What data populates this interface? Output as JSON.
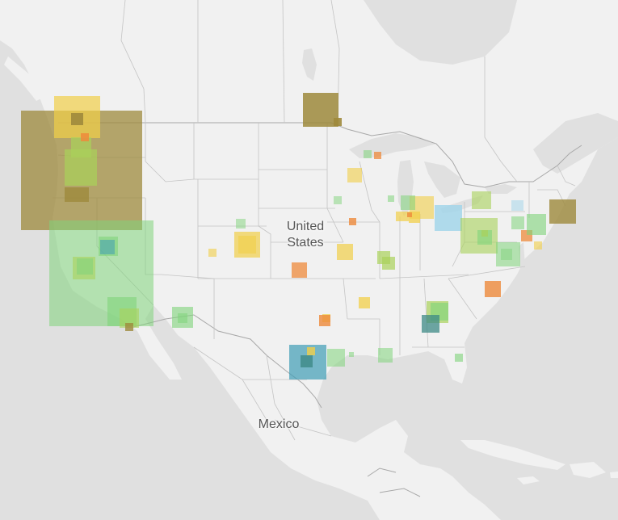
{
  "map": {
    "labels": {
      "usa_line1": "United",
      "usa_line2": "States",
      "mexico": "Mexico"
    },
    "palette": {
      "land": "#f1f1f1",
      "water": "#e0e0e0",
      "border": "#c4c4c4",
      "country_border": "#a8a8a8",
      "olive": "#9e8a3c",
      "green": "#7fd37a",
      "lime": "#a9d25a",
      "yellow": "#f1cf48",
      "orange": "#ee8a3b",
      "teal": "#3f9cb5",
      "lightblue": "#9fd4ea",
      "darkteal": "#3d8a86"
    },
    "markers": [
      {
        "color": "olive",
        "opacity": 0.75
      },
      {
        "color": "green",
        "opacity": 0.55
      },
      {
        "color": "yellow",
        "opacity": 0.7
      },
      {
        "color": "olive",
        "opacity": 0.85
      },
      {
        "color": "olive",
        "opacity": 0.8
      },
      {
        "color": "lime",
        "opacity": 0.7
      },
      {
        "color": "lime",
        "opacity": 0.7
      },
      {
        "color": "olive",
        "opacity": 0.9
      },
      {
        "color": "orange",
        "opacity": 0.85
      },
      {
        "color": "green",
        "opacity": 0.6
      },
      {
        "color": "teal",
        "opacity": 0.55
      },
      {
        "color": "lime",
        "opacity": 0.6
      },
      {
        "color": "green",
        "opacity": 0.55
      },
      {
        "color": "green",
        "opacity": 0.6
      },
      {
        "color": "lime",
        "opacity": 0.6
      },
      {
        "color": "olive",
        "opacity": 0.8
      },
      {
        "color": "green",
        "opacity": 0.6
      },
      {
        "color": "green",
        "opacity": 0.55
      },
      {
        "color": "yellow",
        "opacity": 0.7
      },
      {
        "color": "yellow",
        "opacity": 0.6
      },
      {
        "color": "green",
        "opacity": 0.5
      },
      {
        "color": "yellow",
        "opacity": 0.6
      },
      {
        "color": "orange",
        "opacity": 0.75
      },
      {
        "color": "yellow",
        "opacity": 0.7
      },
      {
        "color": "lime",
        "opacity": 0.7
      },
      {
        "color": "green",
        "opacity": 0.55
      },
      {
        "color": "orange",
        "opacity": 0.75
      },
      {
        "color": "yellow",
        "opacity": 0.6
      },
      {
        "color": "orange",
        "opacity": 0.8
      },
      {
        "color": "teal",
        "opacity": 0.7
      },
      {
        "color": "yellow",
        "opacity": 0.8
      },
      {
        "color": "darkteal",
        "opacity": 0.8
      },
      {
        "color": "green",
        "opacity": 0.55
      },
      {
        "color": "green",
        "opacity": 0.55
      },
      {
        "color": "green",
        "opacity": 0.55
      },
      {
        "color": "lime",
        "opacity": 0.7
      },
      {
        "color": "green",
        "opacity": 0.6
      },
      {
        "color": "yellow",
        "opacity": 0.75
      },
      {
        "color": "yellow",
        "opacity": 0.7
      },
      {
        "color": "orange",
        "opacity": 0.8
      },
      {
        "color": "lightblue",
        "opacity": 0.8
      },
      {
        "color": "lime",
        "opacity": 0.6
      },
      {
        "color": "yellow",
        "opacity": 0.6
      },
      {
        "color": "green",
        "opacity": 0.55
      },
      {
        "color": "green",
        "opacity": 0.55
      },
      {
        "color": "orange",
        "opacity": 0.8
      },
      {
        "color": "darkteal",
        "opacity": 0.75
      },
      {
        "color": "green",
        "opacity": 0.6
      },
      {
        "color": "lime",
        "opacity": 0.7
      },
      {
        "color": "lime",
        "opacity": 0.6
      },
      {
        "color": "green",
        "opacity": 0.6
      },
      {
        "color": "green",
        "opacity": 0.55
      },
      {
        "color": "green",
        "opacity": 0.55
      },
      {
        "color": "orange",
        "opacity": 0.75
      },
      {
        "color": "olive",
        "opacity": 0.8
      },
      {
        "color": "green",
        "opacity": 0.6
      },
      {
        "color": "lightblue",
        "opacity": 0.5
      },
      {
        "color": "green",
        "opacity": 0.45
      },
      {
        "color": "yellow",
        "opacity": 0.6
      },
      {
        "color": "green",
        "opacity": 0.5
      },
      {
        "color": "lime",
        "opacity": 0.7
      },
      {
        "color": "olive",
        "opacity": 0.9
      },
      {
        "color": "yellow",
        "opacity": 0.7
      },
      {
        "color": "yellow",
        "opacity": 0.75
      },
      {
        "color": "orange",
        "opacity": 0.8
      }
    ]
  }
}
